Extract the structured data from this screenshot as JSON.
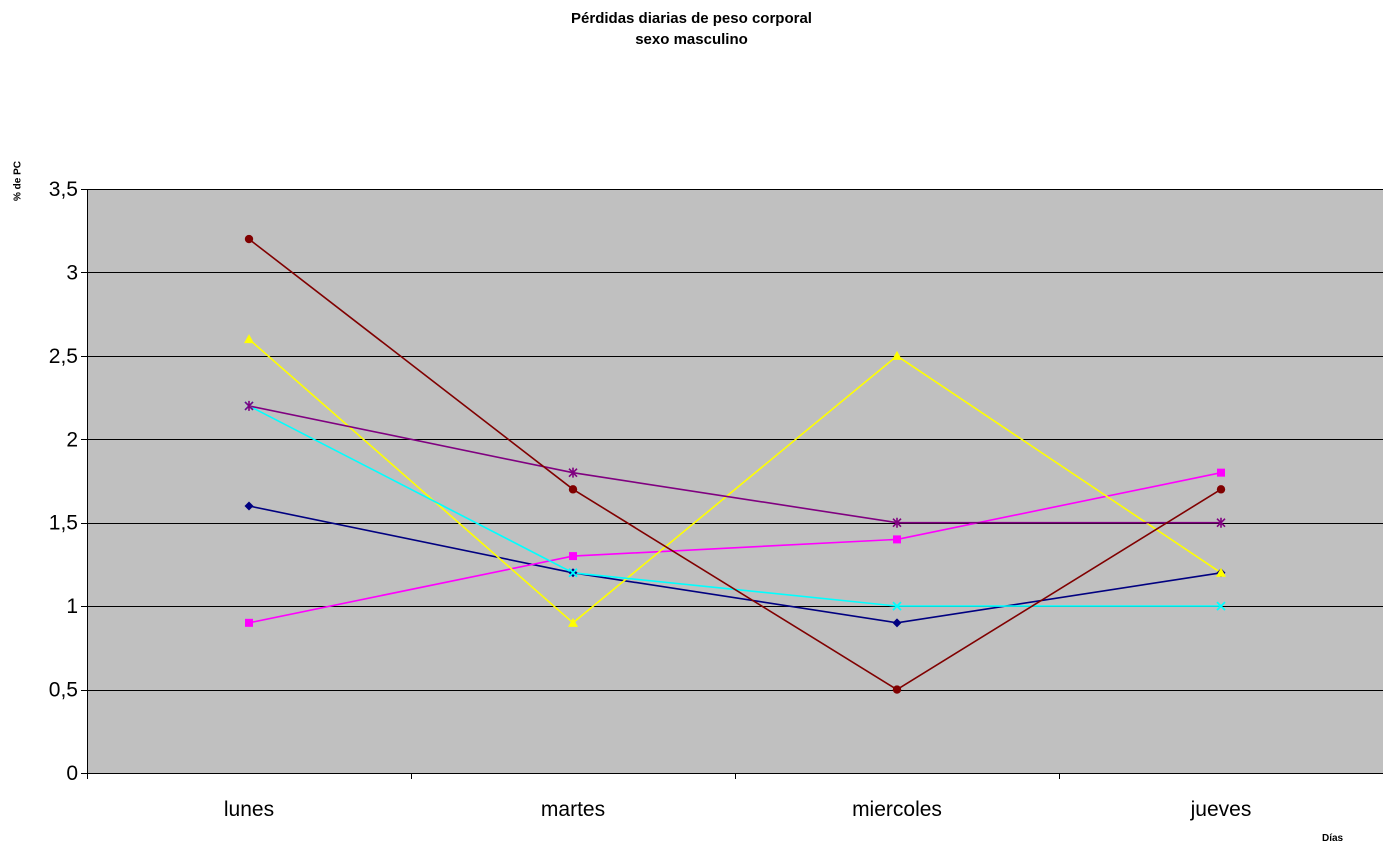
{
  "chart_data": {
    "type": "line",
    "title": "Pérdidas diarias de peso corporal",
    "subtitle": "sexo masculino",
    "xlabel": "Días",
    "ylabel": "% de PC",
    "categories": [
      "lunes",
      "martes",
      "miercoles",
      "jueves"
    ],
    "ylim": [
      0,
      3.5
    ],
    "yticks": [
      0,
      0.5,
      1,
      1.5,
      2,
      2.5,
      3,
      3.5
    ],
    "ytick_labels": [
      "0",
      "0,5",
      "1",
      "1,5",
      "2",
      "2,5",
      "3",
      "3,5"
    ],
    "grid": true,
    "plot_background": "#C0C0C0",
    "legend": "none",
    "series": [
      {
        "values": [
          1.6,
          1.2,
          0.9,
          1.2
        ],
        "color": "#000080",
        "marker": "diamond"
      },
      {
        "values": [
          0.9,
          1.3,
          1.4,
          1.8
        ],
        "color": "#FF00FF",
        "marker": "square"
      },
      {
        "values": [
          2.6,
          0.9,
          2.5,
          1.2
        ],
        "color": "#FFFF00",
        "marker": "triangle"
      },
      {
        "values": [
          2.2,
          1.2,
          1.0,
          1.0
        ],
        "color": "#00FFFF",
        "marker": "x"
      },
      {
        "values": [
          2.2,
          1.8,
          1.5,
          1.5
        ],
        "color": "#800080",
        "marker": "star"
      },
      {
        "values": [
          3.2,
          1.7,
          0.5,
          1.7
        ],
        "color": "#800000",
        "marker": "circle"
      }
    ]
  }
}
